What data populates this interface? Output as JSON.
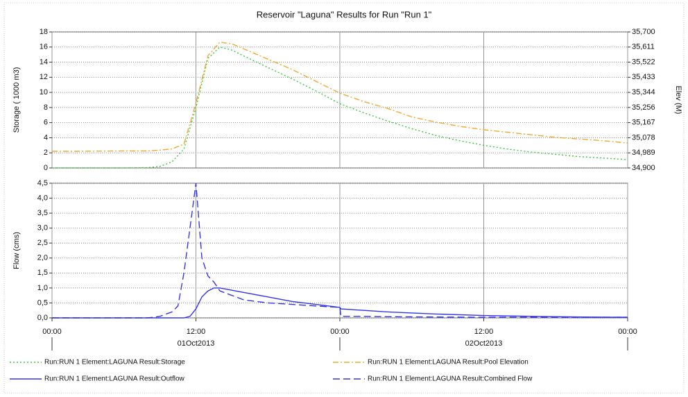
{
  "chart_data": [
    {
      "type": "line",
      "title": "Reservoir \"Laguna\" Results for Run \"Run 1\"",
      "ylabel": "Storage ( 1000 m3)",
      "y2label": "Elev (M)",
      "grid": true,
      "xlim": [
        0,
        48
      ],
      "xticks": [
        0,
        12,
        24,
        36,
        48
      ],
      "ylim": [
        0,
        18
      ],
      "yticks": [
        0,
        2,
        4,
        6,
        8,
        10,
        12,
        14,
        16,
        18
      ],
      "y2lim": [
        34900,
        35700
      ],
      "y2ticks": [
        {
          "value": 34900,
          "label": "34,900"
        },
        {
          "value": 34988.9,
          "label": "34,989"
        },
        {
          "value": 35077.8,
          "label": "35,078"
        },
        {
          "value": 35166.7,
          "label": "35,167"
        },
        {
          "value": 35255.6,
          "label": "35,256"
        },
        {
          "value": 35344.4,
          "label": "35,344"
        },
        {
          "value": 35433.3,
          "label": "35,433"
        },
        {
          "value": 35522.2,
          "label": "35,522"
        },
        {
          "value": 35611.1,
          "label": "35,611"
        },
        {
          "value": 35700,
          "label": "35,700"
        }
      ],
      "x": [
        0,
        2,
        4,
        6,
        8,
        9,
        10,
        11,
        12,
        13,
        14,
        15,
        16,
        18,
        20,
        22,
        24,
        26,
        28,
        30,
        32,
        34,
        36,
        38,
        40,
        42,
        44,
        46,
        48
      ],
      "series": [
        {
          "name": "Run:RUN 1 Element:LAGUNA Result:Storage",
          "color": "#33cc33",
          "line_style": "dotted",
          "values": [
            0,
            0,
            0,
            0,
            0.05,
            0.2,
            0.8,
            2.5,
            8,
            14.5,
            16,
            15.6,
            14.8,
            13.3,
            11.8,
            10.2,
            8.5,
            7.3,
            6.2,
            5.2,
            4.3,
            3.6,
            3.0,
            2.5,
            2.1,
            1.8,
            1.5,
            1.3,
            1.1
          ]
        },
        {
          "name": "Run:RUN 1 Element:LAGUNA Result:Pool Elevation",
          "color": "#f0a830",
          "line_style": "dashdot",
          "axis": "y2",
          "values": [
            34998,
            34998,
            34999,
            35000,
            35000,
            35005,
            35012,
            35040,
            35280,
            35560,
            35640,
            35630,
            35600,
            35540,
            35480,
            35410,
            35340,
            35290,
            35250,
            35200,
            35170,
            35145,
            35125,
            35110,
            35095,
            35080,
            35070,
            35060,
            35047
          ]
        }
      ]
    },
    {
      "type": "line",
      "ylabel": "Flow (cms)",
      "grid": true,
      "legend": "bottom",
      "xlim": [
        0,
        48
      ],
      "xticks": [
        {
          "value": 0,
          "label": "00:00"
        },
        {
          "value": 12,
          "label": "12:00"
        },
        {
          "value": 24,
          "label": "00:00"
        },
        {
          "value": 36,
          "label": "12:00"
        },
        {
          "value": 48,
          "label": "00:00"
        }
      ],
      "date_ticks": [
        {
          "value": 12,
          "label": "01Oct2013"
        },
        {
          "value": 36,
          "label": "02Oct2013"
        }
      ],
      "day_boundaries": [
        0,
        24,
        48
      ],
      "ylim": [
        0,
        4.5
      ],
      "yticks": [
        {
          "value": 0,
          "label": "0,0"
        },
        {
          "value": 0.5,
          "label": "0,5"
        },
        {
          "value": 1,
          "label": "1,0"
        },
        {
          "value": 1.5,
          "label": "1,5"
        },
        {
          "value": 2,
          "label": "2,0"
        },
        {
          "value": 2.5,
          "label": "2,5"
        },
        {
          "value": 3,
          "label": "3,0"
        },
        {
          "value": 3.5,
          "label": "3,5"
        },
        {
          "value": 4,
          "label": "4,0"
        },
        {
          "value": 4.5,
          "label": "4,5"
        }
      ],
      "x": [
        0,
        4,
        8,
        9,
        10,
        10.5,
        11,
        11.5,
        12,
        12.5,
        13,
        13.5,
        14,
        16,
        18,
        20,
        22,
        24,
        24.1,
        26,
        28,
        32,
        36,
        40,
        44,
        48
      ],
      "series": [
        {
          "name": "Run:RUN 1 Element:LAGUNA Result:Outflow",
          "color": "#3333ee",
          "line_style": "solid",
          "values": [
            0,
            0,
            0,
            0,
            0,
            0,
            0,
            0.05,
            0.3,
            0.7,
            0.9,
            1.0,
            1.0,
            0.85,
            0.7,
            0.55,
            0.45,
            0.35,
            0.3,
            0.25,
            0.2,
            0.13,
            0.08,
            0.05,
            0.03,
            0.02
          ]
        },
        {
          "name": "Run:RUN 1 Element:LAGUNA Result:Combined Flow",
          "color": "#3333ee",
          "line_style": "dashed",
          "values": [
            0,
            0,
            0,
            0.05,
            0.2,
            0.4,
            1.5,
            3.0,
            4.5,
            2.0,
            1.4,
            1.2,
            0.9,
            0.6,
            0.5,
            0.45,
            0.4,
            0.35,
            0.05,
            0.05,
            0.04,
            0.03,
            0.02,
            0.02,
            0.02,
            0.02
          ]
        }
      ]
    }
  ]
}
